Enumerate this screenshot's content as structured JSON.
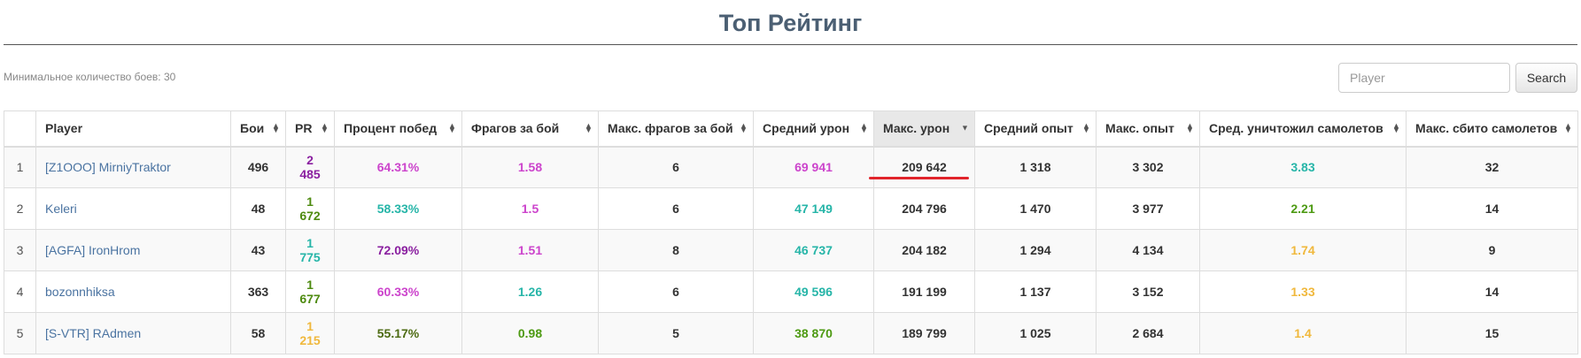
{
  "page": {
    "title": "Топ Рейтинг",
    "min_battles_label": "Минимальное количество боев: 30"
  },
  "search": {
    "placeholder": "Player",
    "value": "",
    "button_label": "Search"
  },
  "table": {
    "columns": [
      {
        "label": ""
      },
      {
        "label": "Player"
      },
      {
        "label": "Бои"
      },
      {
        "label": "PR"
      },
      {
        "label": "Процент побед"
      },
      {
        "label": "Фрагов за бой"
      },
      {
        "label": "Макс. фрагов за бой"
      },
      {
        "label": "Средний урон"
      },
      {
        "label": "Макс. урон",
        "sorted": "desc"
      },
      {
        "label": "Средний опыт"
      },
      {
        "label": "Макс. опыт"
      },
      {
        "label": "Сред. уничтожил самолетов"
      },
      {
        "label": "Макс. сбито самолетов"
      }
    ],
    "rows": [
      {
        "rank": "1",
        "player": "[Z1OOO] MirniyTraktor",
        "battles": "496",
        "pr": "2 485",
        "win_rate": "64.31%",
        "frags_per_battle": "1.58",
        "max_frags": "6",
        "avg_damage": "69 941",
        "max_damage": "209 642",
        "avg_xp": "1 318",
        "max_xp": "3 302",
        "avg_planes": "3.83",
        "max_planes": "32"
      },
      {
        "rank": "2",
        "player": "Keleri",
        "battles": "48",
        "pr": "1 672",
        "win_rate": "58.33%",
        "frags_per_battle": "1.5",
        "max_frags": "6",
        "avg_damage": "47 149",
        "max_damage": "204 796",
        "avg_xp": "1 470",
        "max_xp": "3 977",
        "avg_planes": "2.21",
        "max_planes": "14"
      },
      {
        "rank": "3",
        "player": "[AGFA] IronHrom",
        "battles": "43",
        "pr": "1 775",
        "win_rate": "72.09%",
        "frags_per_battle": "1.51",
        "max_frags": "8",
        "avg_damage": "46 737",
        "max_damage": "204 182",
        "avg_xp": "1 294",
        "max_xp": "4 134",
        "avg_planes": "1.74",
        "max_planes": "9"
      },
      {
        "rank": "4",
        "player": "bozonnhiksa",
        "battles": "363",
        "pr": "1 677",
        "win_rate": "60.33%",
        "frags_per_battle": "1.26",
        "max_frags": "6",
        "avg_damage": "49 596",
        "max_damage": "191 199",
        "avg_xp": "1 137",
        "max_xp": "3 152",
        "avg_planes": "1.33",
        "max_planes": "14"
      },
      {
        "rank": "5",
        "player": "[S-VTR] RAdmen",
        "battles": "58",
        "pr": "1 215",
        "win_rate": "55.17%",
        "frags_per_battle": "0.98",
        "max_frags": "5",
        "avg_damage": "38 870",
        "max_damage": "189 799",
        "avg_xp": "1 025",
        "max_xp": "2 684",
        "avg_planes": "1.4",
        "max_planes": "15"
      }
    ],
    "cell_colors": [
      {
        "pr": "#8a1fa0",
        "win_rate": "#cc44cc",
        "frags_per_battle": "#cc44cc",
        "avg_damage": "#cc44cc",
        "avg_planes": "#26b5a8"
      },
      {
        "pr": "#4d8a0f",
        "win_rate": "#26b5a8",
        "frags_per_battle": "#cc44cc",
        "avg_damage": "#26b5a8",
        "avg_planes": "#4d9a12"
      },
      {
        "pr": "#26b5a8",
        "win_rate": "#8a1fa0",
        "frags_per_battle": "#cc44cc",
        "avg_damage": "#26b5a8",
        "avg_planes": "#f0b83c"
      },
      {
        "pr": "#4d8a0f",
        "win_rate": "#cc44cc",
        "frags_per_battle": "#26b5a8",
        "avg_damage": "#26b5a8",
        "avg_planes": "#f0b83c"
      },
      {
        "pr": "#f0b83c",
        "win_rate": "#4d6b12",
        "frags_per_battle": "#4d9a12",
        "avg_damage": "#4d9a12",
        "avg_planes": "#f0b83c"
      }
    ]
  },
  "colors": {
    "title": "#4b5f73",
    "link": "#4a73a1",
    "sorted_header_bg": "#e8e8e8",
    "highlight_underline": "#e1242b"
  },
  "icons": {
    "sort": "sort-arrows-icon",
    "sort_desc": "sort-desc-icon"
  }
}
